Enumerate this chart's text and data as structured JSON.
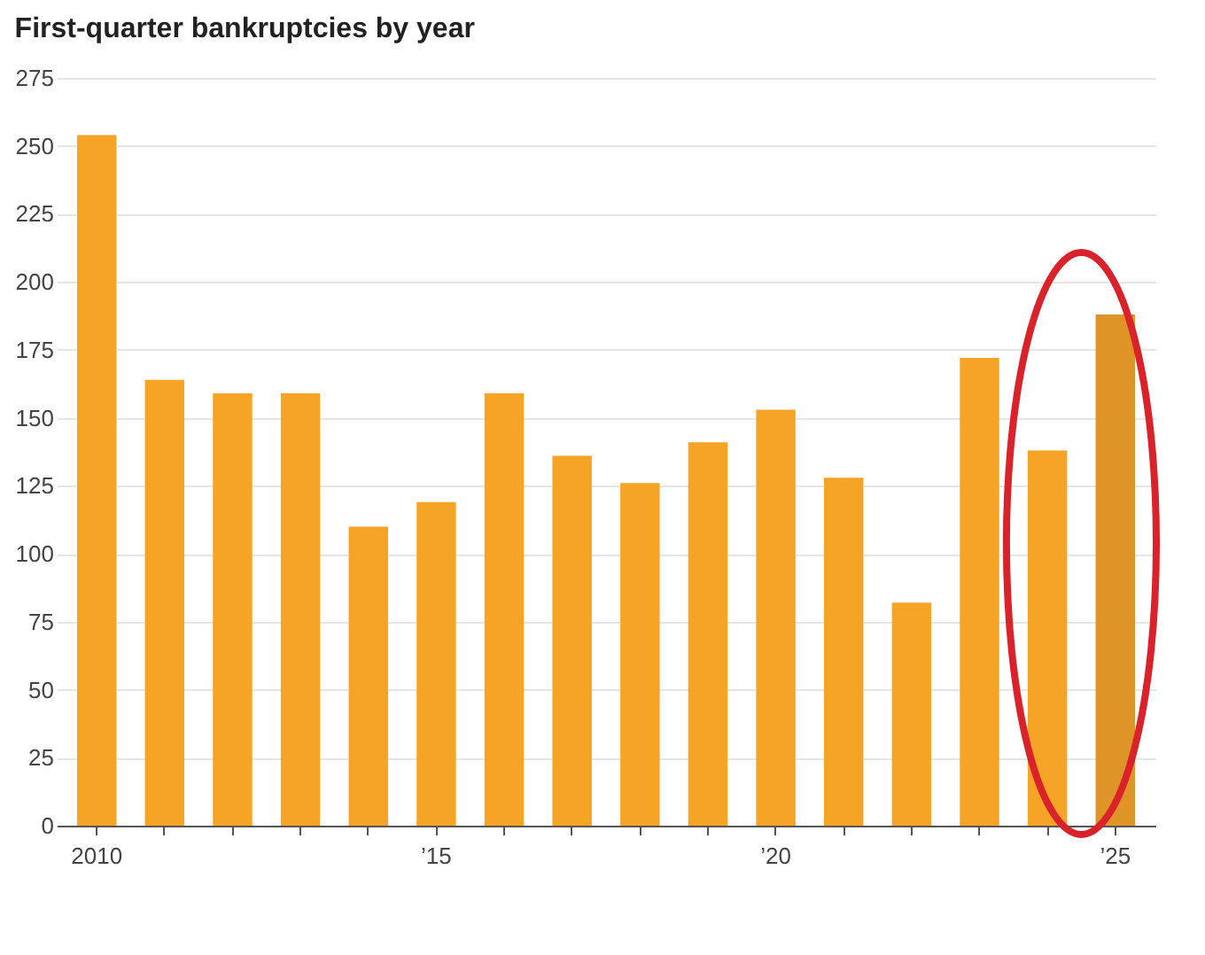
{
  "chart_data": {
    "type": "bar",
    "title": "First-quarter bankruptcies by year",
    "categories": [
      "2010",
      null,
      null,
      null,
      null,
      "’15",
      null,
      null,
      null,
      null,
      "’20",
      null,
      null,
      null,
      null,
      "’25"
    ],
    "values": [
      254,
      164,
      159,
      159,
      110,
      119,
      159,
      136,
      126,
      141,
      153,
      128,
      82,
      172,
      138,
      188
    ],
    "colors": [
      "#f5a425",
      "#f5a425",
      "#f5a425",
      "#f5a425",
      "#f5a425",
      "#f5a425",
      "#f5a425",
      "#f5a425",
      "#f5a425",
      "#f5a425",
      "#f5a425",
      "#f5a425",
      "#f5a425",
      "#f5a425",
      "#f5a425",
      "#df9427"
    ],
    "ylim": [
      0,
      275
    ],
    "yticks": [
      0,
      25,
      50,
      75,
      100,
      125,
      150,
      175,
      200,
      225,
      250,
      275
    ],
    "grid": "y"
  }
}
